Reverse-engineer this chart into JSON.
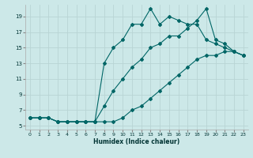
{
  "title": "",
  "xlabel": "Humidex (Indice chaleur)",
  "bg_color": "#cce8e8",
  "grid_color": "#b8d4d4",
  "line_color": "#006666",
  "xlim": [
    -0.5,
    23.5
  ],
  "ylim": [
    4.5,
    20.5
  ],
  "yticks": [
    5,
    7,
    9,
    11,
    13,
    15,
    17,
    19
  ],
  "xticks": [
    0,
    1,
    2,
    3,
    4,
    5,
    6,
    7,
    8,
    9,
    10,
    11,
    12,
    13,
    14,
    15,
    16,
    17,
    18,
    19,
    20,
    21,
    22,
    23
  ],
  "series1_x": [
    0,
    1,
    2,
    3,
    4,
    5,
    6,
    7,
    8,
    9,
    10,
    11,
    12,
    13,
    14,
    15,
    16,
    17,
    18,
    19,
    20,
    21,
    22,
    23
  ],
  "series1_y": [
    6,
    6,
    6,
    5.5,
    5.5,
    5.5,
    5.5,
    5.5,
    13,
    15,
    16,
    18,
    18,
    20,
    18,
    19,
    18.5,
    18,
    18,
    16,
    15.5,
    15,
    14.5,
    14
  ],
  "series2_x": [
    0,
    1,
    2,
    3,
    4,
    5,
    6,
    7,
    8,
    9,
    10,
    11,
    12,
    13,
    14,
    15,
    16,
    17,
    18,
    19,
    20,
    21,
    22,
    23
  ],
  "series2_y": [
    6,
    6,
    6,
    5.5,
    5.5,
    5.5,
    5.5,
    5.5,
    7.5,
    9.5,
    11,
    12.5,
    13.5,
    15,
    15.5,
    16.5,
    16.5,
    17.5,
    18.5,
    20,
    16,
    15.5,
    14.5,
    14
  ],
  "series3_x": [
    0,
    1,
    2,
    3,
    4,
    5,
    6,
    7,
    8,
    9,
    10,
    11,
    12,
    13,
    14,
    15,
    16,
    17,
    18,
    19,
    20,
    21,
    22,
    23
  ],
  "series3_y": [
    6,
    6,
    6,
    5.5,
    5.5,
    5.5,
    5.5,
    5.5,
    5.5,
    5.5,
    6,
    7,
    7.5,
    8.5,
    9.5,
    10.5,
    11.5,
    12.5,
    13.5,
    14,
    14,
    14.5,
    14.5,
    14
  ]
}
